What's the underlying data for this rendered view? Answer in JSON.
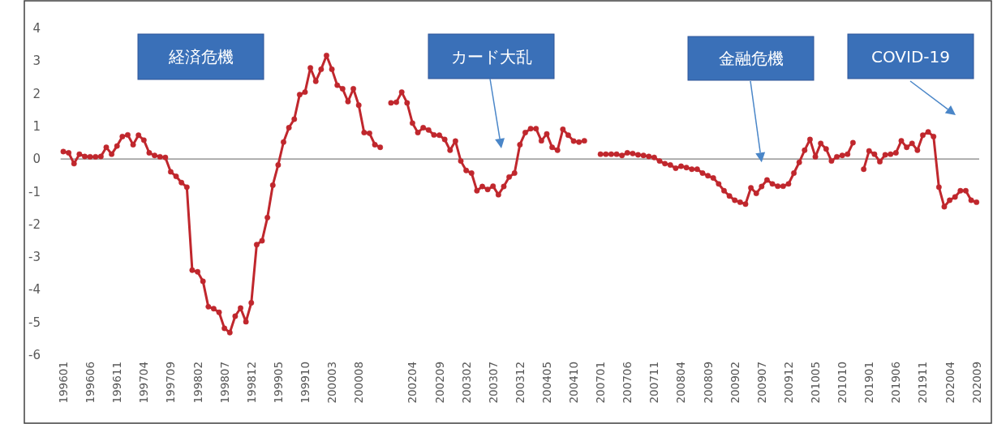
{
  "chart_data": {
    "type": "line",
    "categories": [
      "199601",
      null,
      null,
      null,
      null,
      "199606",
      null,
      null,
      null,
      null,
      "199611",
      null,
      null,
      null,
      null,
      "199704",
      null,
      null,
      null,
      null,
      "199709",
      null,
      null,
      null,
      null,
      "199802",
      null,
      null,
      null,
      null,
      "199807",
      null,
      null,
      null,
      null,
      "199812",
      null,
      null,
      null,
      null,
      "199905",
      null,
      null,
      null,
      null,
      "199910",
      null,
      null,
      null,
      null,
      "200003",
      null,
      null,
      null,
      null,
      "200008",
      null,
      null,
      null,
      null,
      null,
      null,
      null,
      null,
      null,
      "200204",
      null,
      null,
      null,
      null,
      "200209",
      null,
      null,
      null,
      null,
      "200302",
      null,
      null,
      null,
      null,
      "200307",
      null,
      null,
      null,
      null,
      "200312",
      null,
      null,
      null,
      null,
      "200405",
      null,
      null,
      null,
      null,
      "200410",
      null,
      null,
      null,
      null,
      "200701",
      null,
      null,
      null,
      null,
      "200706",
      null,
      null,
      null,
      null,
      "200711",
      null,
      null,
      null,
      null,
      "200804",
      null,
      null,
      null,
      null,
      "200809",
      null,
      null,
      null,
      null,
      "200902",
      null,
      null,
      null,
      null,
      "200907",
      null,
      null,
      null,
      null,
      "200912",
      null,
      null,
      null,
      null,
      "201005",
      null,
      null,
      null,
      null,
      "201010",
      null,
      null,
      null,
      null,
      "201901",
      null,
      null,
      null,
      null,
      "201906",
      null,
      null,
      null,
      null,
      "201911",
      null,
      null,
      null,
      null,
      "202004",
      null,
      null,
      null,
      null,
      "202009"
    ],
    "series": [
      {
        "color": "#c0272d",
        "values": [
          0.23,
          0.19,
          -0.14,
          0.15,
          0.08,
          0.07,
          0.07,
          0.08,
          0.36,
          0.15,
          0.4,
          0.69,
          0.74,
          0.44,
          0.73,
          0.58,
          0.19,
          0.11,
          0.07,
          0.05,
          -0.39,
          -0.53,
          -0.72,
          -0.86,
          -3.4,
          -3.45,
          -3.74,
          -4.52,
          -4.58,
          -4.69,
          -5.18,
          -5.31,
          -4.81,
          -4.56,
          -4.98,
          -4.4,
          -2.62,
          -2.5,
          -1.79,
          -0.8,
          -0.18,
          0.52,
          0.96,
          1.22,
          1.97,
          2.05,
          2.79,
          2.38,
          2.75,
          3.17,
          2.75,
          2.26,
          2.15,
          1.76,
          2.15,
          1.65,
          0.81,
          0.79,
          0.44,
          0.36,
          null,
          1.72,
          1.74,
          2.05,
          1.72,
          1.1,
          0.81,
          0.96,
          0.89,
          0.74,
          0.73,
          0.6,
          0.27,
          0.55,
          -0.06,
          -0.35,
          -0.43,
          -0.97,
          -0.84,
          -0.93,
          -0.83,
          -1.09,
          -0.84,
          -0.55,
          -0.43,
          0.44,
          0.81,
          0.93,
          0.93,
          0.56,
          0.77,
          0.36,
          0.27,
          0.91,
          0.73,
          0.55,
          0.52,
          0.56,
          null,
          null,
          0.15,
          0.15,
          0.15,
          0.15,
          0.11,
          0.19,
          0.17,
          0.13,
          0.11,
          0.08,
          0.05,
          -0.06,
          -0.14,
          -0.18,
          -0.28,
          -0.22,
          -0.26,
          -0.31,
          -0.31,
          -0.43,
          -0.51,
          -0.58,
          -0.76,
          -0.97,
          -1.13,
          -1.26,
          -1.32,
          -1.38,
          -0.88,
          -1.05,
          -0.84,
          -0.64,
          -0.76,
          -0.83,
          -0.83,
          -0.76,
          -0.43,
          -0.1,
          0.27,
          0.6,
          0.07,
          0.48,
          0.31,
          -0.06,
          0.07,
          0.11,
          0.15,
          0.5,
          null,
          -0.31,
          0.25,
          0.15,
          -0.08,
          0.13,
          0.15,
          0.19,
          0.56,
          0.36,
          0.48,
          0.27,
          0.73,
          0.83,
          0.69,
          -0.86,
          -1.46,
          -1.26,
          -1.16,
          -0.97,
          -0.97,
          -1.26,
          -1.32
        ]
      }
    ],
    "ylim": [
      -6,
      4
    ],
    "yticks": [
      -6,
      -5,
      -4,
      -3,
      -2,
      -1,
      0,
      1,
      2,
      3,
      4
    ],
    "marker": "circle",
    "line_style": "solid",
    "grid": false,
    "ref_lines": [
      {
        "axis": "y",
        "value": 0,
        "color": "#808080"
      }
    ],
    "annotations": [
      "経済危機",
      "カード大乱",
      {
        "text": "金融危機",
        "x": "200907",
        "y": 0
      },
      "COVID-19"
    ]
  }
}
